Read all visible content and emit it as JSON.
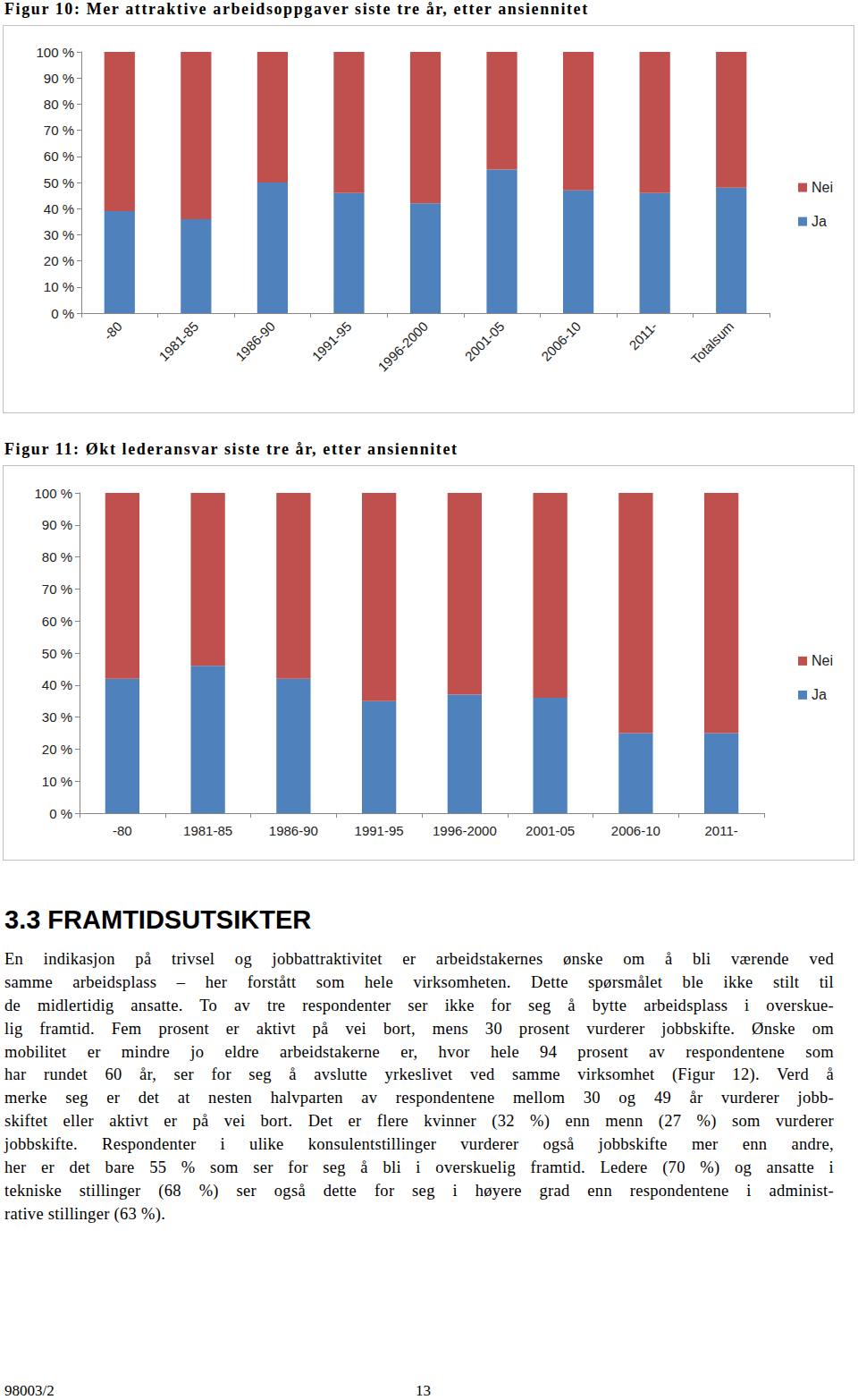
{
  "chart_data": [
    {
      "type": "bar",
      "title": "Figur 10: Mer attraktive arbeidsoppgaver siste tre år, etter ansiennitet",
      "categories": [
        "-80",
        "1981-85",
        "1986-90",
        "1991-95",
        "1996-2000",
        "2001-05",
        "2006-10",
        "2011-",
        "Totalsum"
      ],
      "series": [
        {
          "name": "Ja",
          "color": "#4f81bd",
          "values": [
            39,
            36,
            50,
            46,
            42,
            55,
            47,
            46,
            48
          ]
        },
        {
          "name": "Nei",
          "color": "#c0504d",
          "values": [
            61,
            64,
            50,
            54,
            58,
            45,
            53,
            54,
            52
          ]
        }
      ],
      "stacked": true,
      "ylim": [
        0,
        100
      ],
      "yticks": [
        {
          "value": 0,
          "label": "0 %"
        },
        {
          "value": 10,
          "label": "10 %"
        },
        {
          "value": 20,
          "label": "20 %"
        },
        {
          "value": 30,
          "label": "30 %"
        },
        {
          "value": 40,
          "label": "40 %"
        },
        {
          "value": 50,
          "label": "50 %"
        },
        {
          "value": 60,
          "label": "60 %"
        },
        {
          "value": 70,
          "label": "70 %"
        },
        {
          "value": 80,
          "label": "80 %"
        },
        {
          "value": 90,
          "label": "90 %"
        },
        {
          "value": 100,
          "label": "100 %"
        }
      ],
      "grid": false,
      "legend": "right"
    },
    {
      "type": "bar",
      "title": "Figur 11: Økt lederansvar siste tre år, etter ansiennitet",
      "categories": [
        "-80",
        "1981-85",
        "1986-90",
        "1991-95",
        "1996-2000",
        "2001-05",
        "2006-10",
        "2011-"
      ],
      "series": [
        {
          "name": "Ja",
          "color": "#4f81bd",
          "values": [
            42,
            46,
            42,
            35,
            37,
            36,
            25,
            25
          ]
        },
        {
          "name": "Nei",
          "color": "#c0504d",
          "values": [
            58,
            54,
            58,
            65,
            63,
            64,
            75,
            75
          ]
        }
      ],
      "stacked": true,
      "ylim": [
        0,
        100
      ],
      "yticks": [
        {
          "value": 0,
          "label": "0 %"
        },
        {
          "value": 10,
          "label": "10 %"
        },
        {
          "value": 20,
          "label": "20 %"
        },
        {
          "value": 30,
          "label": "30 %"
        },
        {
          "value": 40,
          "label": "40 %"
        },
        {
          "value": 50,
          "label": "50 %"
        },
        {
          "value": 60,
          "label": "60 %"
        },
        {
          "value": 70,
          "label": "70 %"
        },
        {
          "value": 80,
          "label": "80 %"
        },
        {
          "value": 90,
          "label": "90 %"
        },
        {
          "value": 100,
          "label": "100 %"
        }
      ],
      "grid": false,
      "legend": "right"
    }
  ],
  "section": {
    "heading": "3.3 FRAMTIDSUTSIKTER",
    "lines": [
      "En indikasjon på trivsel og jobbattraktivitet er arbeidstakernes ønske om å bli værende ved",
      "samme arbeidsplass – her forstått som hele virksomheten. Dette spørsmålet ble ikke stilt til",
      "de midlertidig ansatte. To av tre respondenter ser ikke for seg å bytte arbeidsplass i overskue-",
      "lig framtid. Fem prosent er aktivt på vei bort, mens 30 prosent vurderer jobbskifte. Ønske om",
      "mobilitet er mindre jo eldre arbeidstakerne er, hvor hele 94 prosent av respondentene som",
      "har rundet 60 år, ser for seg å avslutte yrkeslivet ved samme virksomhet (Figur 12). Verd å",
      "merke seg er det at nesten halvparten av respondentene mellom 30 og 49 år vurderer jobb-",
      "skiftet eller aktivt er på vei bort. Det er flere kvinner (32 %) enn menn (27 %) som vurderer",
      "jobbskifte. Respondenter i ulike konsulentstillinger vurderer også jobbskifte mer enn andre,",
      "her er det bare 55 % som ser for seg å bli i overskuelig framtid. Ledere (70 %) og ansatte i",
      "tekniske stillinger (68 %) ser også dette for seg i høyere grad enn respondentene i administ-",
      "rative stillinger (63 %)."
    ]
  },
  "footer": {
    "left": "98003/2",
    "page": "13"
  }
}
